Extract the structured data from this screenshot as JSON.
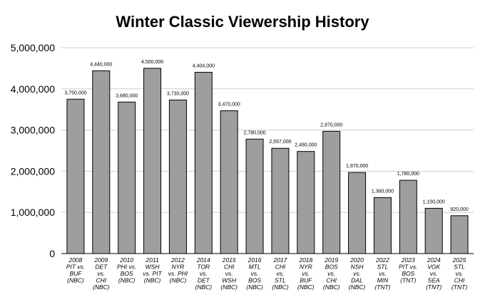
{
  "chart_data": {
    "type": "bar",
    "title": "Winter Classic Viewership History",
    "xlabel": "",
    "ylabel": "",
    "ylim": [
      0,
      5000000
    ],
    "yticks": [
      0,
      1000000,
      2000000,
      3000000,
      4000000,
      5000000
    ],
    "ytick_labels": [
      "0",
      "1,000,000",
      "2,000,000",
      "3,000,000",
      "4,000,000",
      "5,000,000"
    ],
    "grid": true,
    "legend": "none",
    "bar_color": "#9e9e9e",
    "bar_outline": "#000000",
    "categories": [
      [
        "2008",
        "PIT vs.",
        "BUF",
        "(NBC)"
      ],
      [
        "2009",
        "DET",
        "vs.",
        "CHI",
        "(NBC)"
      ],
      [
        "2010",
        "PHI vs.",
        "BOS",
        "(NBC)"
      ],
      [
        "2011",
        "WSH",
        "vs. PIT",
        "(NBC)"
      ],
      [
        "2012",
        "NYR",
        "vs. PHI",
        "(NBC)"
      ],
      [
        "2014",
        "TOR",
        "vs.",
        "DET",
        "(NBC)"
      ],
      [
        "2015",
        "CHI",
        "vs.",
        "WSH",
        "(NBC)"
      ],
      [
        "2016",
        "MTL",
        "vs.",
        "BOS",
        "(NBC)"
      ],
      [
        "2017",
        "CHI",
        "vs.",
        "STL",
        "(NBC)"
      ],
      [
        "2018",
        "NYR",
        "vs.",
        "BUF",
        "(NBC)"
      ],
      [
        "2019",
        "BOS",
        "vs.",
        "CHI",
        "(NBC)"
      ],
      [
        "2020",
        "NSH",
        "vs.",
        "DAL",
        "(NBC)"
      ],
      [
        "2022",
        "STL",
        "vs.",
        "MIN",
        "(TNT)"
      ],
      [
        "2023",
        "PIT vs.",
        "BOS",
        "(TNT)"
      ],
      [
        "2024",
        "VGK",
        "vs.",
        "SEA",
        "(TNT)"
      ],
      [
        "2025",
        "STL",
        "vs.",
        "CHI",
        "(TNT)"
      ]
    ],
    "values": [
      3750000,
      4440000,
      3680000,
      4500000,
      3730000,
      4404000,
      3470000,
      2780000,
      2557000,
      2480000,
      2970000,
      1970000,
      1360000,
      1780000,
      1100000,
      920000
    ],
    "data_labels": [
      "3,750,000",
      "4,440,000",
      "3,680,000",
      "4,500,000",
      "3,730,000",
      "4,404,000",
      "3,470,000",
      "2,780,000",
      "2,557,000",
      "2,480,000",
      "2,970,000",
      "1,970,000",
      "1,360,000",
      "1,780,000",
      "1,100,000",
      "920,000"
    ]
  }
}
